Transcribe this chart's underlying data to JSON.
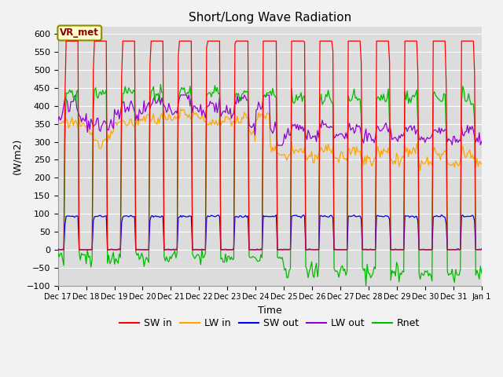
{
  "title": "Short/Long Wave Radiation",
  "xlabel": "Time",
  "ylabel": "(W/m2)",
  "ylim": [
    -100,
    620
  ],
  "yticks": [
    -100,
    -50,
    0,
    50,
    100,
    150,
    200,
    250,
    300,
    350,
    400,
    450,
    500,
    550,
    600
  ],
  "annotation": "VR_met",
  "annotation_color": "#8B0000",
  "annotation_bg": "#FFFFCC",
  "annotation_border": "#8B8B00",
  "bg_color": "#DCDCDC",
  "colors": {
    "SW_in": "#FF0000",
    "LW_in": "#FFA500",
    "SW_out": "#0000FF",
    "LW_out": "#9400D3",
    "Rnet": "#00BB00"
  },
  "legend_labels": [
    "SW in",
    "LW in",
    "SW out",
    "LW out",
    "Rnet"
  ]
}
